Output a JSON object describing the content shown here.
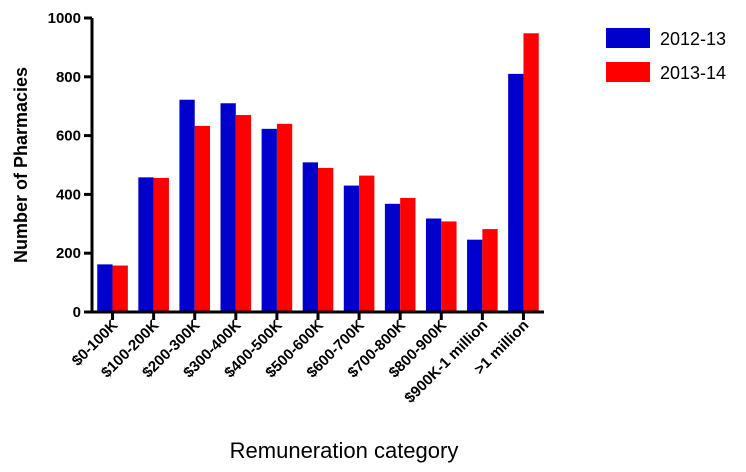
{
  "chart_data": {
    "type": "bar",
    "title": "",
    "xlabel": "Remuneration category",
    "ylabel": "Number of Pharmacies",
    "ylim": [
      0,
      1000
    ],
    "yticks": [
      0,
      200,
      400,
      600,
      800,
      1000
    ],
    "categories": [
      "$0-100K",
      "$100-200K",
      "$200-300K",
      "$300-400K",
      "$400-500K",
      "$500-600K",
      "$600-700K",
      "$700-800K",
      "$800-900K",
      "$900K-1 million",
      ">1 million"
    ],
    "series": [
      {
        "name": "2012-13",
        "color": "#0000cc",
        "values": [
          162,
          458,
          722,
          710,
          623,
          509,
          430,
          368,
          318,
          246,
          810
        ]
      },
      {
        "name": "2013-14",
        "color": "#ff0000",
        "values": [
          158,
          456,
          633,
          670,
          640,
          490,
          464,
          388,
          308,
          282,
          948
        ]
      }
    ],
    "legend_position": "top-right",
    "grid": false
  }
}
